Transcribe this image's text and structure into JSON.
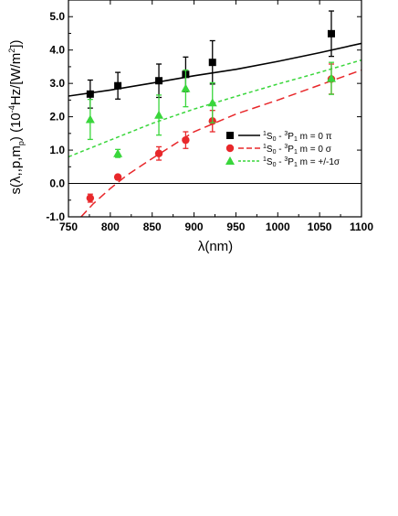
{
  "chart_data": {
    "type": "scatter",
    "xlabel": "λ(nm)",
    "ylabel": "s(λ,,p,m_p) (10^-4Hz/[W/m^2])",
    "xlim": [
      750,
      1100
    ],
    "ylim": [
      -1.0,
      5.5
    ],
    "xticks": [
      750,
      800,
      850,
      900,
      950,
      1000,
      1050,
      1100
    ],
    "yticks": [
      -1.0,
      0.0,
      1.0,
      2.0,
      3.0,
      4.0,
      5.0
    ],
    "ytick_labels": [
      "-1.0",
      "0.0",
      "1.0",
      "2.0",
      "3.0",
      "4.0",
      "5.0"
    ],
    "zero_line": true,
    "legend_position": "middle-right",
    "series": [
      {
        "name": "1S0 - 3P1 m = 0 π",
        "legend_parts": [
          "1",
          "S",
          "0",
          " - ",
          "3",
          "P",
          "1",
          " m = 0 π"
        ],
        "color": "#000000",
        "marker": "square",
        "line": "solid",
        "points": [
          {
            "x": 776,
            "y": 2.68,
            "err": 0.42
          },
          {
            "x": 809,
            "y": 2.93,
            "err": 0.4
          },
          {
            "x": 858,
            "y": 3.08,
            "err": 0.5
          },
          {
            "x": 890,
            "y": 3.27,
            "err": 0.52
          },
          {
            "x": 922,
            "y": 3.63,
            "err": 0.65
          },
          {
            "x": 1064,
            "y": 4.49,
            "err": 0.68
          }
        ],
        "fit": [
          [
            750,
            2.62
          ],
          [
            800,
            2.8
          ],
          [
            850,
            3.01
          ],
          [
            900,
            3.23
          ],
          [
            950,
            3.42
          ],
          [
            1000,
            3.66
          ],
          [
            1050,
            3.92
          ],
          [
            1100,
            4.2
          ]
        ]
      },
      {
        "name": "1S0 - 3P1 m = 0 σ",
        "legend_parts": [
          "1",
          "S",
          "0",
          " - ",
          "3",
          "P",
          "1",
          " m = 0 σ"
        ],
        "color": "#e8282b",
        "marker": "circle",
        "line": "long-dash",
        "points": [
          {
            "x": 776,
            "y": -0.44,
            "err": 0.12
          },
          {
            "x": 809,
            "y": 0.19,
            "err": 0.05
          },
          {
            "x": 858,
            "y": 0.9,
            "err": 0.2
          },
          {
            "x": 890,
            "y": 1.3,
            "err": 0.25
          },
          {
            "x": 922,
            "y": 1.87,
            "err": 0.32
          },
          {
            "x": 1064,
            "y": 3.13,
            "err": 0.45
          }
        ],
        "fit": [
          [
            765,
            -1.0
          ],
          [
            780,
            -0.6
          ],
          [
            800,
            -0.15
          ],
          [
            820,
            0.25
          ],
          [
            850,
            0.75
          ],
          [
            900,
            1.55
          ],
          [
            950,
            2.08
          ],
          [
            1000,
            2.5
          ],
          [
            1050,
            2.95
          ],
          [
            1100,
            3.4
          ]
        ]
      },
      {
        "name": "1S0 - 3P1 m = +/-1σ",
        "legend_parts": [
          "1",
          "S",
          "0",
          " - ",
          "3",
          "P",
          "1",
          " m = +/-1σ"
        ],
        "color": "#39d63b",
        "marker": "triangle",
        "line": "short-dash",
        "points": [
          {
            "x": 776,
            "y": 1.92,
            "err": 0.6
          },
          {
            "x": 809,
            "y": 0.9,
            "err": 0.12
          },
          {
            "x": 858,
            "y": 2.05,
            "err": 0.6
          },
          {
            "x": 890,
            "y": 2.85,
            "err": 0.55
          },
          {
            "x": 922,
            "y": 2.42,
            "err": 0.6
          },
          {
            "x": 1064,
            "y": 3.15,
            "err": 0.48
          }
        ],
        "fit": [
          [
            750,
            0.8
          ],
          [
            800,
            1.3
          ],
          [
            850,
            1.8
          ],
          [
            900,
            2.23
          ],
          [
            950,
            2.61
          ],
          [
            1000,
            2.98
          ],
          [
            1050,
            3.33
          ],
          [
            1100,
            3.7
          ]
        ]
      }
    ]
  }
}
